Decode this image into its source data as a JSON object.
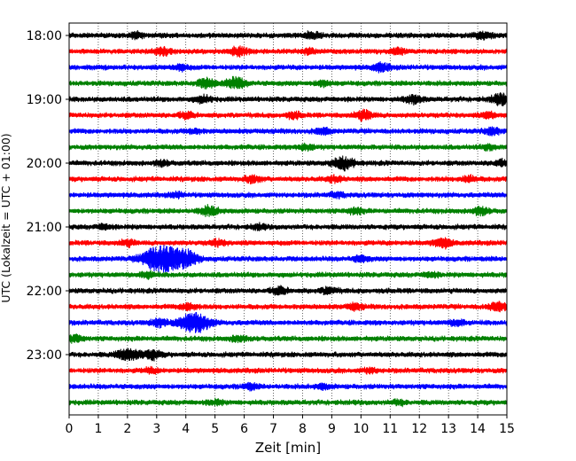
{
  "chart_data": {
    "type": "line",
    "title": "",
    "xlabel": "Zeit  [min]",
    "ylabel": "UTC (Lokalzeit = UTC + 01:00)",
    "xlim": [
      0,
      15
    ],
    "x_ticks": [
      "0",
      "1",
      "2",
      "3",
      "4",
      "5",
      "6",
      "7",
      "8",
      "9",
      "10",
      "11",
      "12",
      "13",
      "14",
      "15"
    ],
    "y_ticks": [
      "18:00",
      "19:00",
      "20:00",
      "21:00",
      "22:00",
      "23:00"
    ],
    "grid": "vertical dotted",
    "trace_interval_min": 15,
    "start_time": "18:00",
    "trace_colors": [
      "#000000",
      "#ff0000",
      "#0000ff",
      "#008000"
    ],
    "traces": [
      {
        "start": "18:00",
        "color": "#000000",
        "bursts": [
          [
            2.3,
            0.5
          ],
          [
            8.3,
            0.6
          ],
          [
            14.2,
            0.6
          ]
        ]
      },
      {
        "start": "18:15",
        "color": "#ff0000",
        "bursts": [
          [
            3.2,
            0.6
          ],
          [
            5.8,
            0.8
          ],
          [
            8.2,
            0.5
          ],
          [
            11.3,
            0.5
          ]
        ]
      },
      {
        "start": "18:30",
        "color": "#0000ff",
        "bursts": [
          [
            3.8,
            0.5
          ],
          [
            10.7,
            0.7
          ]
        ]
      },
      {
        "start": "18:45",
        "color": "#008000",
        "bursts": [
          [
            4.7,
            0.8
          ],
          [
            5.7,
            1.0
          ],
          [
            8.7,
            0.5
          ]
        ]
      },
      {
        "start": "19:00",
        "color": "#000000",
        "bursts": [
          [
            4.6,
            0.6
          ],
          [
            11.8,
            0.7
          ],
          [
            14.8,
            0.9
          ]
        ]
      },
      {
        "start": "19:15",
        "color": "#ff0000",
        "bursts": [
          [
            4.0,
            0.5
          ],
          [
            7.7,
            0.5
          ],
          [
            10.1,
            0.8
          ],
          [
            14.4,
            0.5
          ]
        ]
      },
      {
        "start": "19:30",
        "color": "#0000ff",
        "bursts": [
          [
            4.3,
            0.4
          ],
          [
            8.7,
            0.5
          ],
          [
            14.5,
            0.6
          ]
        ]
      },
      {
        "start": "19:45",
        "color": "#008000",
        "bursts": [
          [
            8.1,
            0.5
          ],
          [
            14.4,
            0.4
          ]
        ]
      },
      {
        "start": "20:00",
        "color": "#000000",
        "bursts": [
          [
            3.2,
            0.4
          ],
          [
            9.4,
            1.1
          ],
          [
            14.8,
            0.5
          ]
        ]
      },
      {
        "start": "20:15",
        "color": "#ff0000",
        "bursts": [
          [
            6.3,
            0.6
          ],
          [
            9.1,
            0.5
          ],
          [
            13.7,
            0.5
          ]
        ]
      },
      {
        "start": "20:30",
        "color": "#0000ff",
        "bursts": [
          [
            3.7,
            0.4
          ],
          [
            9.2,
            0.4
          ]
        ]
      },
      {
        "start": "20:45",
        "color": "#008000",
        "bursts": [
          [
            4.8,
            0.8
          ],
          [
            9.8,
            0.5
          ],
          [
            14.1,
            0.6
          ]
        ]
      },
      {
        "start": "21:00",
        "color": "#000000",
        "bursts": [
          [
            1.2,
            0.4
          ],
          [
            6.5,
            0.4
          ]
        ]
      },
      {
        "start": "21:15",
        "color": "#ff0000",
        "bursts": [
          [
            2.0,
            0.5
          ],
          [
            5.1,
            0.5
          ],
          [
            12.8,
            0.8
          ]
        ]
      },
      {
        "start": "21:30",
        "color": "#0000ff",
        "bursts": [
          [
            2.9,
            1.7
          ],
          [
            3.5,
            2.0
          ],
          [
            4.1,
            1.0
          ],
          [
            10.0,
            0.5
          ]
        ]
      },
      {
        "start": "21:45",
        "color": "#008000",
        "bursts": [
          [
            2.7,
            0.5
          ],
          [
            12.4,
            0.4
          ]
        ]
      },
      {
        "start": "22:00",
        "color": "#000000",
        "bursts": [
          [
            7.2,
            0.6
          ],
          [
            8.9,
            0.6
          ]
        ]
      },
      {
        "start": "22:15",
        "color": "#ff0000",
        "bursts": [
          [
            4.1,
            0.6
          ],
          [
            9.8,
            0.5
          ],
          [
            14.7,
            0.8
          ]
        ]
      },
      {
        "start": "22:30",
        "color": "#0000ff",
        "bursts": [
          [
            3.1,
            0.7
          ],
          [
            4.3,
            1.9
          ],
          [
            13.3,
            0.5
          ]
        ]
      },
      {
        "start": "22:45",
        "color": "#008000",
        "bursts": [
          [
            0.2,
            0.6
          ],
          [
            5.8,
            0.5
          ]
        ]
      },
      {
        "start": "23:00",
        "color": "#000000",
        "bursts": [
          [
            2.0,
            1.1
          ],
          [
            2.8,
            0.9
          ]
        ]
      },
      {
        "start": "23:15",
        "color": "#ff0000",
        "bursts": [
          [
            2.8,
            0.4
          ],
          [
            10.3,
            0.4
          ]
        ]
      },
      {
        "start": "23:30",
        "color": "#0000ff",
        "bursts": [
          [
            6.2,
            0.5
          ],
          [
            8.7,
            0.4
          ]
        ]
      },
      {
        "start": "23:45",
        "color": "#008000",
        "bursts": [
          [
            5.0,
            0.4
          ],
          [
            11.3,
            0.4
          ]
        ]
      }
    ]
  }
}
